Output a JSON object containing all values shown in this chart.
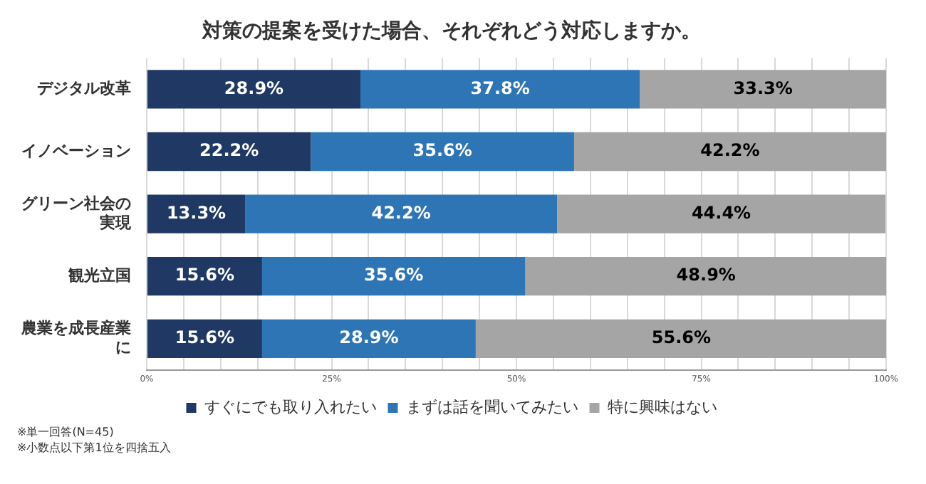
{
  "chart_data": {
    "type": "bar",
    "orientation": "horizontal",
    "stacked": true,
    "title": "対策の提案を受けた場合、それぞれどう対応しますか。",
    "categories": [
      "デジタル改革",
      "イノベーション",
      "グリーン社会の実現",
      "観光立国",
      "農業を成長産業に"
    ],
    "series": [
      {
        "name": "すぐにでも取り入れたい",
        "color": "#1f3864",
        "values": [
          28.9,
          22.2,
          13.3,
          15.6,
          15.6
        ],
        "value_labels": [
          "28.9%",
          "22.2%",
          "13.3%",
          "15.6%",
          "15.6%"
        ]
      },
      {
        "name": "まずは話を聞いてみたい",
        "color": "#2e75b6",
        "values": [
          37.8,
          35.6,
          42.2,
          35.6,
          28.9
        ],
        "value_labels": [
          "37.8%",
          "35.6%",
          "42.2%",
          "35.6%",
          "28.9%"
        ]
      },
      {
        "name": "特に興味はない",
        "color": "#a5a5a5",
        "values": [
          33.3,
          42.2,
          44.4,
          48.9,
          55.6
        ],
        "value_labels": [
          "33.3%",
          "42.2%",
          "44.4%",
          "48.9%",
          "55.6%"
        ]
      }
    ],
    "xlim": [
      0,
      100
    ],
    "xticks": [
      {
        "value": 0,
        "label": "0%"
      },
      {
        "value": 5,
        "label": null
      },
      {
        "value": 10,
        "label": null
      },
      {
        "value": 15,
        "label": null
      },
      {
        "value": 20,
        "label": null
      },
      {
        "value": 25,
        "label": "25%"
      },
      {
        "value": 30,
        "label": null
      },
      {
        "value": 35,
        "label": null
      },
      {
        "value": 40,
        "label": null
      },
      {
        "value": 45,
        "label": null
      },
      {
        "value": 50,
        "label": "50%"
      },
      {
        "value": 55,
        "label": null
      },
      {
        "value": 60,
        "label": null
      },
      {
        "value": 65,
        "label": null
      },
      {
        "value": 70,
        "label": null
      },
      {
        "value": 75,
        "label": "75%"
      },
      {
        "value": 80,
        "label": null
      },
      {
        "value": 85,
        "label": null
      },
      {
        "value": 90,
        "label": null
      },
      {
        "value": 95,
        "label": null
      },
      {
        "value": 100,
        "label": "100%"
      }
    ],
    "grid": "x",
    "legend": "bottom",
    "annotations": [
      "※単一回答(N=45)",
      "※小数点以下第1位を四捨五入"
    ]
  }
}
